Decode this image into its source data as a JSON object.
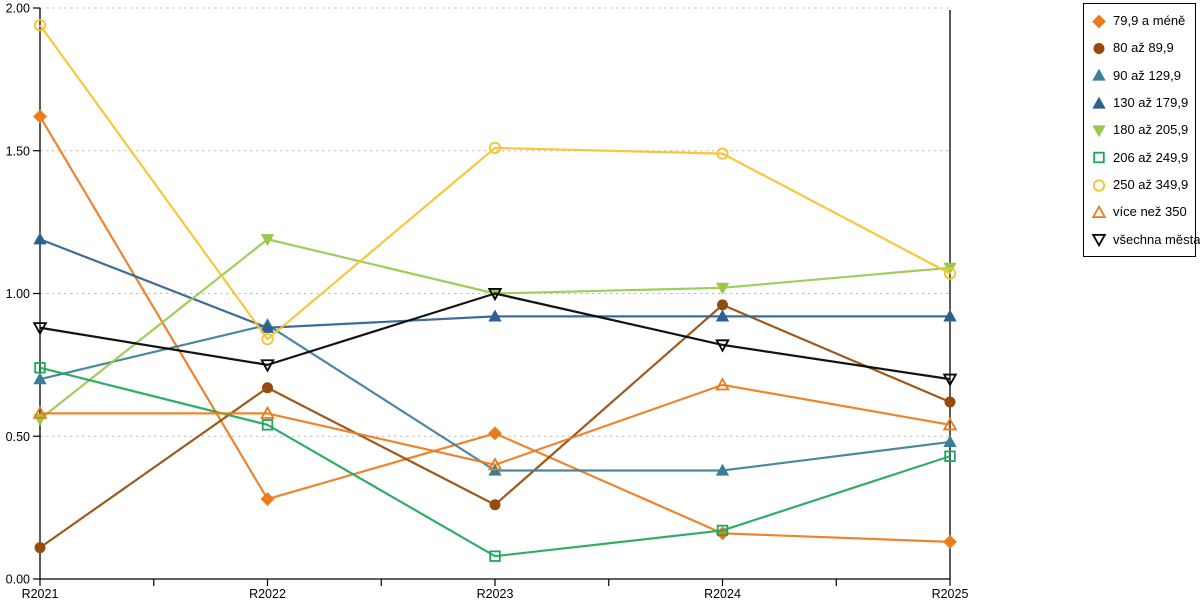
{
  "chart_data": {
    "type": "line",
    "categories": [
      "R2021",
      "R2022",
      "R2023",
      "R2024",
      "R2025"
    ],
    "series": [
      {
        "name": "79,9 a méně",
        "color": "#EC7A1C",
        "marker": "diamond",
        "fill": "filled",
        "values": [
          1.62,
          0.28,
          0.51,
          0.16,
          0.13
        ]
      },
      {
        "name": "80 až 89,9",
        "color": "#964B0A",
        "marker": "circle",
        "fill": "filled",
        "values": [
          0.11,
          0.67,
          0.26,
          0.96,
          0.62
        ]
      },
      {
        "name": "90 až 129,9",
        "color": "#3A7F97",
        "marker": "triangle-up",
        "fill": "filled",
        "values": [
          0.7,
          0.89,
          0.38,
          0.38,
          0.48
        ]
      },
      {
        "name": "130 až 179,9",
        "color": "#2F5F8F",
        "marker": "triangle-up",
        "fill": "filled",
        "values": [
          1.19,
          0.88,
          0.92,
          0.92,
          0.92
        ]
      },
      {
        "name": "180 až 205,9",
        "color": "#97CA4C",
        "marker": "triangle-down",
        "fill": "filled",
        "values": [
          0.56,
          1.19,
          1.0,
          1.02,
          1.09
        ]
      },
      {
        "name": "206 až 249,9",
        "color": "#1EA75A",
        "marker": "square",
        "fill": "hollow",
        "values": [
          0.74,
          0.54,
          0.08,
          0.17,
          0.43
        ]
      },
      {
        "name": "250 až 349,9",
        "color": "#F6C22D",
        "marker": "circle",
        "fill": "hollow",
        "values": [
          1.94,
          0.84,
          1.51,
          1.49,
          1.07
        ]
      },
      {
        "name": "více než 350",
        "color": "#EC7A1C",
        "marker": "triangle-up",
        "fill": "hollow",
        "values": [
          0.58,
          0.58,
          0.4,
          0.68,
          0.54
        ]
      },
      {
        "name": "všechna města",
        "color": "#000000",
        "marker": "triangle-down",
        "fill": "hollow",
        "values": [
          0.88,
          0.75,
          1.0,
          0.82,
          0.7
        ]
      }
    ],
    "title": "",
    "xlabel": "",
    "ylabel": "",
    "ylim": [
      0,
      2
    ],
    "yticks": [
      0.0,
      0.5,
      1.0,
      1.5,
      2.0
    ],
    "ytick_labels": [
      "0.00",
      "0.50",
      "1.00",
      "1.50",
      "2.00"
    ],
    "grid": "horizontal-dashed",
    "legend_position": "outside-top-right"
  },
  "colors": {
    "background": "#FFFFFF",
    "grid": "#BFBFBF",
    "axis": "#000000",
    "legend_border": "#000000"
  }
}
